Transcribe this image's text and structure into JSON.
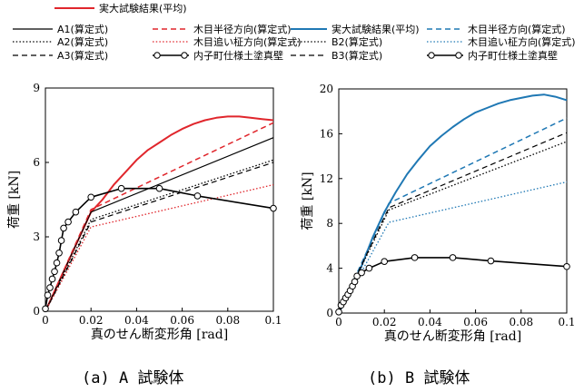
{
  "legend_a": [
    {
      "label": "実大試験結果(平均)",
      "color": "#e0262c",
      "dash": "solid",
      "width": 2,
      "marker": "none"
    },
    {
      "label": "A1(算定式)",
      "color": "#000000",
      "dash": "solid",
      "width": 1.2,
      "marker": "none"
    },
    {
      "label": "木目半径方向(算定式)",
      "color": "#e0262c",
      "dash": "dashed",
      "width": 1.5,
      "marker": "none"
    },
    {
      "label": "A2(算定式)",
      "color": "#000000",
      "dash": "dotted",
      "width": 1.3,
      "marker": "none"
    },
    {
      "label": "木目追い柾方向(算定式)",
      "color": "#e0262c",
      "dash": "dotted",
      "width": 1.3,
      "marker": "none"
    },
    {
      "label": "A3(算定式)",
      "color": "#000000",
      "dash": "dashed",
      "width": 1.2,
      "marker": "none"
    },
    {
      "label": "内子町仕様土塗真壁",
      "color": "#000000",
      "dash": "solid",
      "width": 1.6,
      "marker": "circle"
    }
  ],
  "legend_b": [
    {
      "label": "実大試験結果(平均)",
      "color": "#1f78b4",
      "dash": "solid",
      "width": 2,
      "marker": "none"
    },
    {
      "label": "木目半径方向(算定式)",
      "color": "#1f78b4",
      "dash": "dashed",
      "width": 1.5,
      "marker": "none"
    },
    {
      "label": "B2(算定式)",
      "color": "#000000",
      "dash": "dotted",
      "width": 1.3,
      "marker": "none"
    },
    {
      "label": "木目追い柾方向(算定式)",
      "color": "#1f78b4",
      "dash": "dotted",
      "width": 1.3,
      "marker": "none"
    },
    {
      "label": "B3(算定式)",
      "color": "#000000",
      "dash": "dashed",
      "width": 1.2,
      "marker": "none"
    },
    {
      "label": "内子町仕様土塗真壁",
      "color": "#000000",
      "dash": "solid",
      "width": 1.6,
      "marker": "circle"
    }
  ],
  "captions": {
    "a": "(a)  A 試験体",
    "b": "(b)  B 試験体"
  },
  "chart_data": [
    {
      "type": "line",
      "xlabel": "真のせん断変形角 [rad]",
      "ylabel": "荷重 [kN]",
      "xlim": [
        0,
        0.1
      ],
      "ylim": [
        0,
        9
      ],
      "xticks": [
        0,
        0.02,
        0.04,
        0.06,
        0.08,
        0.1
      ],
      "xtick_labels": [
        "0",
        "0.02",
        "0.04",
        "0.06",
        "0.08",
        "0.1"
      ],
      "yticks": [
        0,
        3,
        6,
        9
      ],
      "ytick_labels": [
        "0",
        "3",
        "6",
        "9"
      ],
      "grid": false,
      "series": [
        {
          "name": "実大試験結果(平均)",
          "color": "#e0262c",
          "dash": "solid",
          "width": 2,
          "x": [
            0,
            0.005,
            0.01,
            0.015,
            0.02,
            0.025,
            0.03,
            0.035,
            0.04,
            0.045,
            0.05,
            0.055,
            0.06,
            0.065,
            0.07,
            0.075,
            0.08,
            0.085,
            0.09,
            0.095,
            0.1
          ],
          "y": [
            0,
            1.0,
            2.0,
            3.0,
            4.0,
            4.5,
            5.1,
            5.6,
            6.1,
            6.5,
            6.8,
            7.1,
            7.35,
            7.55,
            7.7,
            7.8,
            7.85,
            7.85,
            7.8,
            7.75,
            7.7
          ]
        },
        {
          "name": "A1(算定式)",
          "color": "#000000",
          "dash": "solid",
          "width": 1.2,
          "x": [
            0,
            0.02,
            0.1
          ],
          "y": [
            0,
            4.0,
            7.0
          ]
        },
        {
          "name": "木目半径方向(算定式)",
          "color": "#e0262c",
          "dash": "dashed",
          "width": 1.5,
          "x": [
            0,
            0.02,
            0.1
          ],
          "y": [
            0,
            4.1,
            7.6
          ]
        },
        {
          "name": "A2(算定式)",
          "color": "#000000",
          "dash": "dotted",
          "width": 1.3,
          "x": [
            0,
            0.02,
            0.1
          ],
          "y": [
            0,
            3.7,
            6.1
          ]
        },
        {
          "name": "木目追い柾方向(算定式)",
          "color": "#e0262c",
          "dash": "dotted",
          "width": 1.3,
          "x": [
            0,
            0.02,
            0.1
          ],
          "y": [
            0,
            3.4,
            5.1
          ]
        },
        {
          "name": "A3(算定式)",
          "color": "#000000",
          "dash": "dashed",
          "width": 1.2,
          "x": [
            0,
            0.02,
            0.1
          ],
          "y": [
            0,
            3.6,
            6.0
          ]
        },
        {
          "name": "内子町仕様土塗真壁",
          "color": "#000000",
          "dash": "solid",
          "width": 1.6,
          "marker": "circle",
          "x": [
            0,
            0.001,
            0.002,
            0.003,
            0.004,
            0.005,
            0.006,
            0.007,
            0.008,
            0.01,
            0.0133,
            0.02,
            0.0333,
            0.05,
            0.0667,
            0.1
          ],
          "y": [
            0.1,
            0.65,
            0.95,
            1.3,
            1.6,
            1.95,
            2.35,
            2.85,
            3.35,
            3.6,
            4.0,
            4.6,
            4.95,
            4.95,
            4.65,
            4.15
          ]
        }
      ]
    },
    {
      "type": "line",
      "xlabel": "真のせん断変形角 [rad]",
      "ylabel": "荷重 [kN]",
      "xlim": [
        0,
        0.1
      ],
      "ylim": [
        0,
        20
      ],
      "xticks": [
        0,
        0.02,
        0.04,
        0.06,
        0.08,
        0.1
      ],
      "xtick_labels": [
        "0",
        "0.02",
        "0.04",
        "0.06",
        "0.08",
        "0.1"
      ],
      "yticks": [
        0,
        4,
        8,
        12,
        16,
        20
      ],
      "ytick_labels": [
        "0",
        "4",
        "8",
        "12",
        "16",
        "20"
      ],
      "grid": false,
      "series": [
        {
          "name": "実大試験結果(平均)",
          "color": "#1f78b4",
          "dash": "solid",
          "width": 2,
          "x": [
            0,
            0.005,
            0.01,
            0.015,
            0.02,
            0.025,
            0.03,
            0.035,
            0.04,
            0.045,
            0.05,
            0.055,
            0.06,
            0.065,
            0.07,
            0.075,
            0.08,
            0.085,
            0.09,
            0.095,
            0.1
          ],
          "y": [
            0,
            2.0,
            4.2,
            6.8,
            9.0,
            10.8,
            12.4,
            13.7,
            14.9,
            15.8,
            16.6,
            17.3,
            17.9,
            18.3,
            18.7,
            19.0,
            19.2,
            19.4,
            19.5,
            19.3,
            19.0
          ]
        },
        {
          "name": "木目半径方向(算定式)",
          "color": "#1f78b4",
          "dash": "dashed",
          "width": 1.5,
          "x": [
            0,
            0.022,
            0.1
          ],
          "y": [
            0,
            9.8,
            17.4
          ]
        },
        {
          "name": "B2(算定式)",
          "color": "#000000",
          "dash": "dotted",
          "width": 1.3,
          "x": [
            0,
            0.022,
            0.1
          ],
          "y": [
            0,
            9.2,
            15.3
          ]
        },
        {
          "name": "木目追い柾方向(算定式)",
          "color": "#1f78b4",
          "dash": "dotted",
          "width": 1.3,
          "x": [
            0,
            0.022,
            0.1
          ],
          "y": [
            0,
            8.1,
            11.7
          ]
        },
        {
          "name": "B3(算定式)",
          "color": "#000000",
          "dash": "dashed",
          "width": 1.2,
          "x": [
            0,
            0.022,
            0.1
          ],
          "y": [
            0,
            9.4,
            16.1
          ]
        },
        {
          "name": "内子町仕様土塗真壁",
          "color": "#000000",
          "dash": "solid",
          "width": 1.6,
          "marker": "circle",
          "x": [
            0,
            0.001,
            0.002,
            0.003,
            0.004,
            0.005,
            0.006,
            0.007,
            0.008,
            0.01,
            0.0133,
            0.02,
            0.0333,
            0.05,
            0.0667,
            0.1
          ],
          "y": [
            0.1,
            0.7,
            1.0,
            1.35,
            1.65,
            2.0,
            2.4,
            2.8,
            3.3,
            3.6,
            4.0,
            4.6,
            4.95,
            4.95,
            4.65,
            4.15
          ]
        }
      ]
    }
  ]
}
